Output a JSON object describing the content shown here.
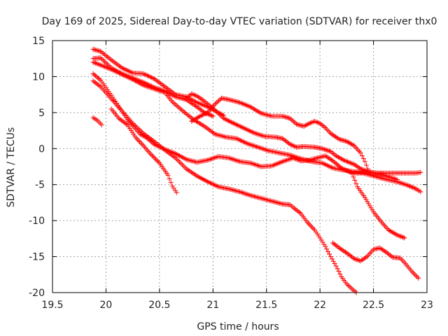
{
  "chart_data": {
    "type": "scatter",
    "title": "Day 169 of 2025, Sidereal Day-to-day VTEC variation (SDTVAR) for receiver thx0",
    "xlabel": "GPS time / hours",
    "ylabel": "SDTVAR / TECUs",
    "xlim": [
      19.5,
      23.0
    ],
    "ylim": [
      -20,
      15
    ],
    "xticks": [
      19.5,
      20,
      20.5,
      21,
      21.5,
      22,
      22.5,
      23
    ],
    "xtick_labels": [
      "19.5",
      "20",
      "20.5",
      "21",
      "21.5",
      "22",
      "22.5",
      "23"
    ],
    "yticks": [
      -20,
      -15,
      -10,
      -5,
      0,
      5,
      10,
      15
    ],
    "ytick_labels": [
      "-20",
      "-15",
      "-10",
      "-5",
      "0",
      "5",
      "10",
      "15"
    ],
    "grid": true,
    "marker": "plus",
    "color": "#ff0000",
    "series": [
      {
        "name": "s1",
        "points": [
          [
            19.88,
            13.8
          ],
          [
            19.95,
            13.5
          ],
          [
            20.05,
            12.3
          ],
          [
            20.15,
            11.2
          ],
          [
            20.25,
            10.5
          ],
          [
            20.35,
            10.4
          ],
          [
            20.45,
            9.7
          ],
          [
            20.55,
            8.6
          ],
          [
            20.65,
            7.5
          ],
          [
            20.75,
            7.2
          ],
          [
            20.85,
            6.4
          ],
          [
            20.95,
            5.8
          ],
          [
            21.05,
            5.0
          ],
          [
            21.1,
            4.6
          ]
        ]
      },
      {
        "name": "s2",
        "points": [
          [
            19.88,
            12.5
          ],
          [
            19.95,
            12.6
          ],
          [
            20.05,
            11.2
          ],
          [
            20.15,
            10.4
          ],
          [
            20.25,
            9.8
          ],
          [
            20.35,
            9.2
          ],
          [
            20.45,
            8.5
          ],
          [
            20.55,
            8.0
          ],
          [
            20.65,
            7.2
          ],
          [
            20.75,
            6.8
          ],
          [
            20.85,
            5.8
          ],
          [
            20.92,
            5.0
          ],
          [
            21.0,
            4.5
          ]
        ]
      },
      {
        "name": "s3",
        "points": [
          [
            19.88,
            12.0
          ],
          [
            19.95,
            11.6
          ],
          [
            20.05,
            11.0
          ],
          [
            20.15,
            10.3
          ],
          [
            20.25,
            9.6
          ],
          [
            20.35,
            8.8
          ],
          [
            20.45,
            8.3
          ],
          [
            20.55,
            7.8
          ],
          [
            20.62,
            6.5
          ],
          [
            20.72,
            5.2
          ],
          [
            20.82,
            4.0
          ],
          [
            20.92,
            3.1
          ],
          [
            21.02,
            2.0
          ],
          [
            21.12,
            1.6
          ],
          [
            21.22,
            1.4
          ],
          [
            21.32,
            0.7
          ],
          [
            21.42,
            0.2
          ],
          [
            21.52,
            -0.3
          ],
          [
            21.62,
            -0.6
          ],
          [
            21.72,
            -0.9
          ],
          [
            21.82,
            -1.4
          ],
          [
            21.92,
            -1.8
          ],
          [
            22.02,
            -2.0
          ],
          [
            22.12,
            -2.7
          ],
          [
            22.22,
            -3.0
          ],
          [
            22.32,
            -3.2
          ],
          [
            22.42,
            -3.3
          ],
          [
            22.52,
            -3.4
          ],
          [
            22.6,
            -3.4
          ],
          [
            22.7,
            -3.4
          ],
          [
            22.8,
            -3.4
          ],
          [
            22.9,
            -3.4
          ],
          [
            22.94,
            -3.3
          ]
        ]
      },
      {
        "name": "s4",
        "points": [
          [
            20.8,
            3.8
          ],
          [
            20.88,
            4.5
          ],
          [
            20.95,
            5.0
          ],
          [
            21.02,
            6.2
          ],
          [
            21.08,
            7.0
          ],
          [
            21.15,
            6.8
          ],
          [
            21.25,
            6.4
          ],
          [
            21.35,
            5.8
          ],
          [
            21.45,
            4.9
          ],
          [
            21.55,
            4.5
          ],
          [
            21.65,
            4.5
          ],
          [
            21.72,
            4.2
          ],
          [
            21.78,
            3.4
          ],
          [
            21.85,
            3.1
          ],
          [
            21.9,
            3.5
          ],
          [
            21.95,
            3.8
          ],
          [
            22.0,
            3.5
          ],
          [
            22.05,
            2.9
          ],
          [
            22.1,
            2.1
          ],
          [
            22.18,
            1.3
          ],
          [
            22.25,
            1.0
          ],
          [
            22.32,
            0.4
          ],
          [
            22.38,
            -0.6
          ],
          [
            22.42,
            -1.8
          ],
          [
            22.46,
            -3.3
          ]
        ]
      },
      {
        "name": "s5",
        "points": [
          [
            20.75,
            7.0
          ],
          [
            20.8,
            7.6
          ],
          [
            20.85,
            7.3
          ],
          [
            20.9,
            6.8
          ],
          [
            20.95,
            6.2
          ],
          [
            21.0,
            5.6
          ],
          [
            21.05,
            4.9
          ],
          [
            21.1,
            4.2
          ],
          [
            21.18,
            3.6
          ],
          [
            21.28,
            2.9
          ],
          [
            21.38,
            2.2
          ],
          [
            21.48,
            1.7
          ],
          [
            21.58,
            1.6
          ],
          [
            21.65,
            1.4
          ],
          [
            21.72,
            0.6
          ],
          [
            21.78,
            0.2
          ],
          [
            21.85,
            0.3
          ],
          [
            21.95,
            0.2
          ],
          [
            22.02,
            0.0
          ],
          [
            22.1,
            -0.4
          ],
          [
            22.15,
            -1.0
          ],
          [
            22.22,
            -1.6
          ],
          [
            22.32,
            -2.2
          ],
          [
            22.38,
            -2.8
          ],
          [
            22.45,
            -3.2
          ],
          [
            22.52,
            -3.4
          ],
          [
            22.58,
            -3.6
          ],
          [
            22.66,
            -4.0
          ],
          [
            22.72,
            -4.3
          ]
        ]
      },
      {
        "name": "s6",
        "points": [
          [
            19.88,
            10.4
          ],
          [
            19.95,
            9.5
          ],
          [
            20.05,
            7.4
          ],
          [
            20.15,
            5.2
          ],
          [
            20.25,
            3.5
          ],
          [
            20.35,
            2.1
          ],
          [
            20.45,
            1.0
          ],
          [
            20.55,
            -0.2
          ],
          [
            20.65,
            -1.3
          ],
          [
            20.75,
            -2.8
          ],
          [
            20.85,
            -3.8
          ],
          [
            20.95,
            -4.6
          ],
          [
            21.05,
            -5.3
          ],
          [
            21.15,
            -5.6
          ],
          [
            21.25,
            -6.0
          ],
          [
            21.35,
            -6.5
          ],
          [
            21.45,
            -6.9
          ],
          [
            21.55,
            -7.3
          ],
          [
            21.65,
            -7.7
          ],
          [
            21.72,
            -7.8
          ],
          [
            21.76,
            -8.3
          ],
          [
            21.82,
            -9.0
          ],
          [
            21.88,
            -10.2
          ],
          [
            21.95,
            -11.3
          ],
          [
            22.0,
            -12.4
          ],
          [
            22.05,
            -13.6
          ],
          [
            22.1,
            -15.0
          ],
          [
            22.15,
            -16.3
          ],
          [
            22.2,
            -17.8
          ],
          [
            22.25,
            -18.8
          ],
          [
            22.3,
            -19.5
          ],
          [
            22.34,
            -20.0
          ]
        ]
      },
      {
        "name": "s7",
        "points": [
          [
            19.88,
            9.4
          ],
          [
            19.95,
            8.6
          ],
          [
            20.05,
            6.9
          ],
          [
            20.15,
            5.2
          ],
          [
            20.2,
            4.0
          ],
          [
            20.25,
            3.2
          ],
          [
            20.32,
            2.0
          ],
          [
            20.38,
            1.5
          ],
          [
            20.45,
            0.6
          ],
          [
            20.55,
            -0.1
          ],
          [
            20.65,
            -0.7
          ],
          [
            20.75,
            -1.5
          ],
          [
            20.85,
            -1.9
          ],
          [
            20.95,
            -1.6
          ],
          [
            21.05,
            -1.1
          ],
          [
            21.15,
            -1.3
          ],
          [
            21.25,
            -1.8
          ],
          [
            21.35,
            -2.0
          ],
          [
            21.45,
            -2.5
          ],
          [
            21.55,
            -2.4
          ],
          [
            21.65,
            -1.8
          ],
          [
            21.75,
            -1.3
          ],
          [
            21.82,
            -1.7
          ],
          [
            21.9,
            -1.6
          ],
          [
            22.0,
            -1.2
          ],
          [
            22.05,
            -1.0
          ],
          [
            22.12,
            -1.7
          ],
          [
            22.2,
            -2.7
          ],
          [
            22.3,
            -3.4
          ],
          [
            22.4,
            -3.4
          ],
          [
            22.5,
            -3.8
          ],
          [
            22.6,
            -4.2
          ],
          [
            22.72,
            -4.6
          ],
          [
            22.82,
            -5.1
          ],
          [
            22.9,
            -5.6
          ],
          [
            22.94,
            -6.0
          ]
        ]
      },
      {
        "name": "s8",
        "points": [
          [
            20.05,
            5.5
          ],
          [
            20.12,
            4.2
          ],
          [
            20.2,
            3.3
          ],
          [
            20.28,
            1.5
          ],
          [
            20.35,
            0.4
          ],
          [
            20.42,
            -0.8
          ],
          [
            20.5,
            -2.0
          ],
          [
            20.58,
            -3.7
          ],
          [
            20.62,
            -5.2
          ],
          [
            20.66,
            -6.1
          ]
        ]
      },
      {
        "name": "s9",
        "points": [
          [
            19.88,
            4.3
          ],
          [
            19.92,
            3.9
          ],
          [
            19.96,
            3.3
          ]
        ]
      },
      {
        "name": "s10",
        "points": [
          [
            22.12,
            -13.1
          ],
          [
            22.18,
            -13.8
          ],
          [
            22.25,
            -14.5
          ],
          [
            22.32,
            -15.3
          ],
          [
            22.38,
            -15.6
          ],
          [
            22.44,
            -15.0
          ],
          [
            22.5,
            -14.0
          ],
          [
            22.56,
            -13.8
          ],
          [
            22.62,
            -14.4
          ],
          [
            22.68,
            -15.1
          ],
          [
            22.75,
            -15.2
          ],
          [
            22.8,
            -16.0
          ],
          [
            22.86,
            -17.1
          ],
          [
            22.92,
            -18.0
          ]
        ]
      },
      {
        "name": "s11",
        "points": [
          [
            22.3,
            -3.5
          ],
          [
            22.35,
            -5.3
          ],
          [
            22.42,
            -6.8
          ],
          [
            22.5,
            -8.8
          ],
          [
            22.58,
            -10.3
          ],
          [
            22.64,
            -11.3
          ],
          [
            22.72,
            -12.0
          ],
          [
            22.79,
            -12.4
          ]
        ]
      }
    ]
  }
}
